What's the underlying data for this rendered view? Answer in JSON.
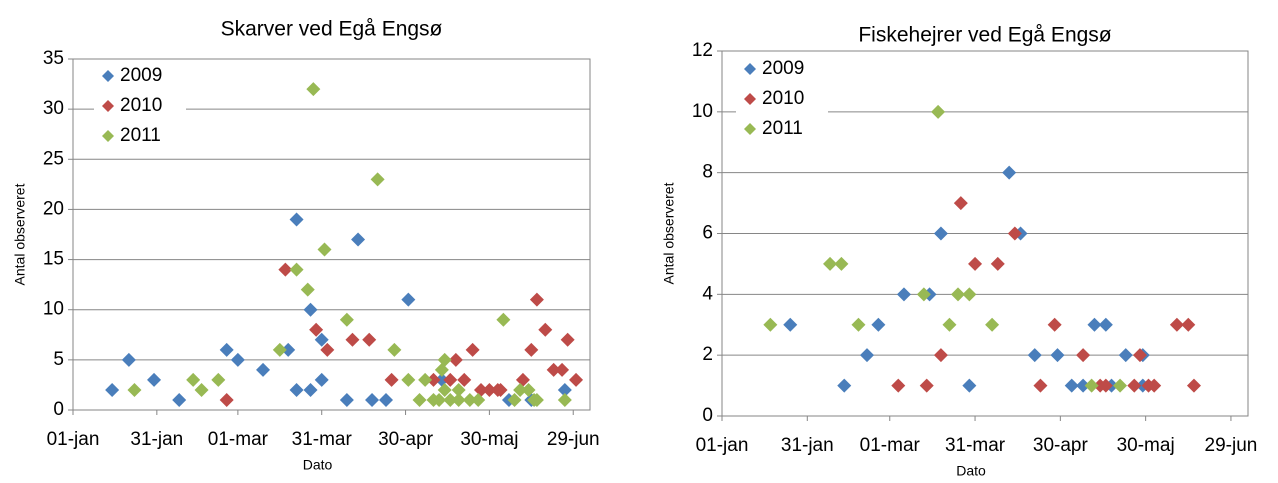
{
  "chart_data": [
    {
      "type": "scatter",
      "title": "Skarver ved Egå Engsø",
      "x_label": "Dato",
      "y_label": "Antal observeret",
      "xlim": [
        1,
        186
      ],
      "ylim": [
        0,
        35
      ],
      "xticks": [
        {
          "value": 1,
          "label": "01-jan"
        },
        {
          "value": 31,
          "label": "31-jan"
        },
        {
          "value": 60,
          "label": "01-mar"
        },
        {
          "value": 90,
          "label": "31-mar"
        },
        {
          "value": 120,
          "label": "30-apr"
        },
        {
          "value": 150,
          "label": "30-maj"
        },
        {
          "value": 180,
          "label": "29-jun"
        }
      ],
      "yticks": [
        0,
        5,
        10,
        15,
        20,
        25,
        30,
        35
      ],
      "grid": true,
      "legend": "top-left",
      "series": [
        {
          "name": "2009",
          "color": "#4a7ebb",
          "x": [
            15,
            21,
            30,
            39,
            56,
            60,
            69,
            78,
            81,
            81,
            86,
            86,
            90,
            90,
            99,
            103,
            108,
            113,
            121,
            133,
            157,
            165,
            177
          ],
          "values": [
            2,
            5,
            3,
            1,
            6,
            5,
            4,
            6,
            19,
            2,
            2,
            10,
            7,
            3,
            1,
            17,
            1,
            1,
            11,
            3,
            1,
            1,
            2
          ]
        },
        {
          "name": "2010",
          "color": "#be4b48",
          "x": [
            56,
            77,
            88,
            92,
            101,
            107,
            115,
            130,
            136,
            138,
            141,
            144,
            147,
            150,
            153,
            154,
            162,
            165,
            167,
            170,
            173,
            176,
            178,
            181
          ],
          "values": [
            1,
            14,
            8,
            6,
            7,
            7,
            3,
            3,
            3,
            5,
            3,
            6,
            2,
            2,
            2,
            2,
            3,
            6,
            11,
            8,
            4,
            4,
            7,
            3
          ]
        },
        {
          "name": "2011",
          "color": "#98b954",
          "x": [
            23,
            44,
            47,
            53,
            75,
            81,
            85,
            87,
            91,
            99,
            110,
            116,
            121,
            125,
            127,
            130,
            132,
            133,
            134,
            134,
            136,
            139,
            139,
            143,
            146,
            155,
            159,
            161,
            164,
            166,
            167,
            177
          ],
          "values": [
            2,
            3,
            2,
            3,
            6,
            14,
            12,
            32,
            16,
            9,
            23,
            6,
            3,
            1,
            3,
            1,
            1,
            4,
            5,
            2,
            1,
            2,
            1,
            1,
            1,
            9,
            1,
            2,
            2,
            1,
            1,
            1
          ]
        }
      ]
    },
    {
      "type": "scatter",
      "title": "Fiskehejrer ved Egå Engsø",
      "x_label": "Dato",
      "y_label": "Antal observeret",
      "xlim": [
        1,
        186
      ],
      "ylim": [
        0,
        12
      ],
      "xticks": [
        {
          "value": 1,
          "label": "01-jan"
        },
        {
          "value": 31,
          "label": "31-jan"
        },
        {
          "value": 60,
          "label": "01-mar"
        },
        {
          "value": 90,
          "label": "31-mar"
        },
        {
          "value": 120,
          "label": "30-apr"
        },
        {
          "value": 150,
          "label": "30-maj"
        },
        {
          "value": 180,
          "label": "29-jun"
        }
      ],
      "yticks": [
        0,
        2,
        4,
        6,
        8,
        10,
        12
      ],
      "grid": true,
      "legend": "top-left",
      "series": [
        {
          "name": "2009",
          "color": "#4a7ebb",
          "x": [
            25,
            44,
            52,
            56,
            65,
            74,
            78,
            88,
            102,
            106,
            111,
            119,
            124,
            128,
            132,
            136,
            138,
            143,
            149,
            149
          ],
          "values": [
            3,
            1,
            2,
            3,
            4,
            4,
            6,
            1,
            8,
            6,
            2,
            2,
            1,
            1,
            3,
            3,
            1,
            2,
            2,
            1
          ]
        },
        {
          "name": "2010",
          "color": "#be4b48",
          "x": [
            63,
            73,
            78,
            85,
            90,
            98,
            104,
            113,
            118,
            128,
            134,
            136,
            146,
            148,
            151,
            153,
            161,
            165,
            167
          ],
          "values": [
            1,
            1,
            2,
            7,
            5,
            5,
            6,
            1,
            3,
            2,
            1,
            1,
            1,
            2,
            1,
            1,
            3,
            3,
            1
          ]
        },
        {
          "name": "2011",
          "color": "#98b954",
          "x": [
            18,
            39,
            43,
            49,
            72,
            77,
            81,
            84,
            88,
            96,
            131,
            141
          ],
          "values": [
            3,
            5,
            5,
            3,
            4,
            10,
            3,
            4,
            4,
            3,
            1,
            1
          ]
        }
      ]
    }
  ]
}
